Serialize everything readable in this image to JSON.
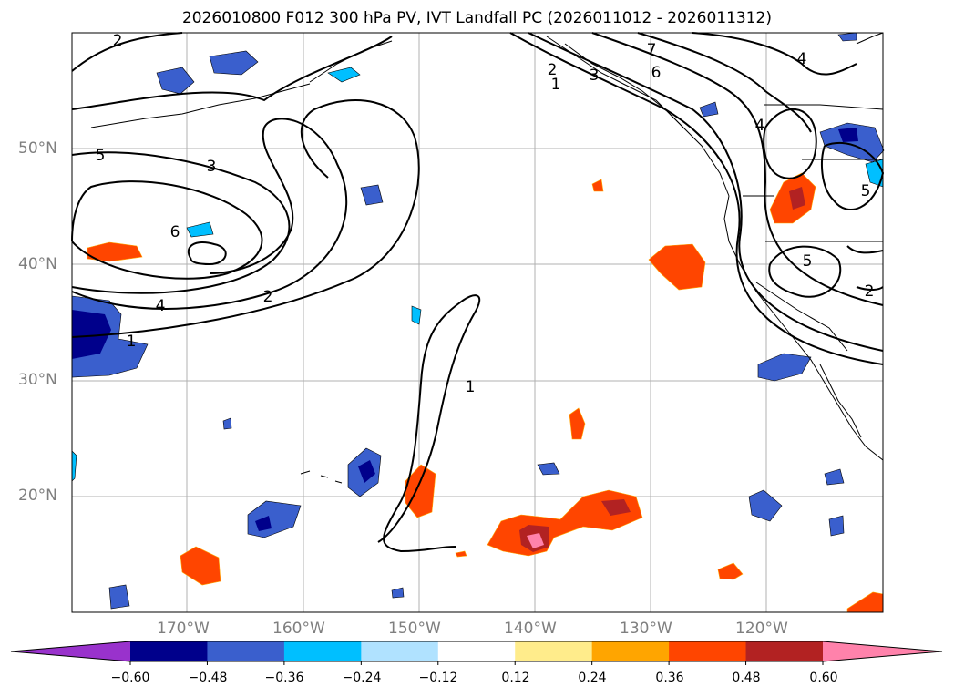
{
  "title": "2026010800 F012 300 hPa PV, IVT Landfall PC (2026011012 - 2026011312)",
  "axes": {
    "y_labels": [
      "50°N",
      "40°N",
      "30°N",
      "20°N"
    ],
    "x_labels": [
      "170°W",
      "160°W",
      "150°W",
      "140°W",
      "130°W",
      "120°W"
    ]
  },
  "contour_labels": [
    "2",
    "5",
    "3",
    "6",
    "4",
    "2",
    "1",
    "1",
    "7",
    "6",
    "2",
    "3",
    "1",
    "4",
    "5",
    "5",
    "2",
    "4"
  ],
  "colorbar": {
    "ticks": [
      "−0.60",
      "−0.48",
      "−0.36",
      "−0.24",
      "−0.12",
      "0.12",
      "0.24",
      "0.36",
      "0.48",
      "0.60"
    ],
    "colors": [
      "#9932cc",
      "#00008b",
      "#3a5fcd",
      "#00bfff",
      "#b0e2ff",
      "#ffffff",
      "#ffec8b",
      "#ffa500",
      "#ff4500",
      "#b22222",
      "#ff82ab"
    ]
  }
}
